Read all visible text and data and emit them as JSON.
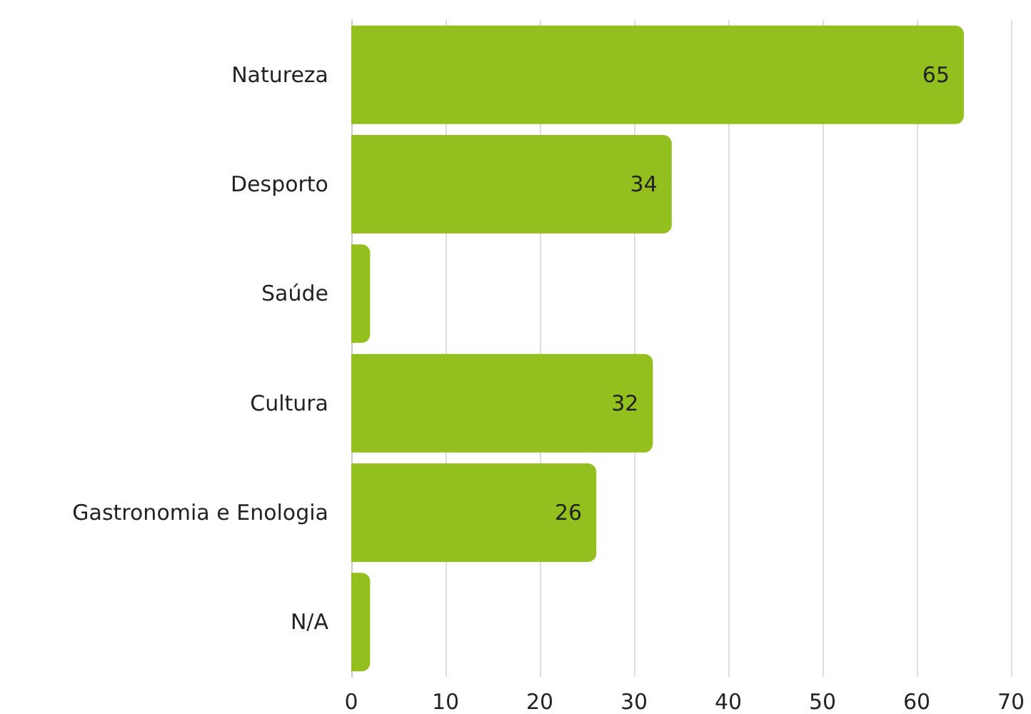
{
  "chart_data": {
    "type": "bar",
    "orientation": "horizontal",
    "categories": [
      "Natureza",
      "Desporto",
      "Saúde",
      "Cultura",
      "Gastronomia e Enologia",
      "N/A"
    ],
    "values": [
      65,
      34,
      2,
      32,
      26,
      2
    ],
    "value_labels": [
      "65",
      "34",
      null,
      "32",
      "26",
      null
    ],
    "color": "#93c01f",
    "xlim": [
      0,
      70
    ],
    "xticks": [
      0,
      10,
      20,
      30,
      40,
      50,
      60,
      70
    ],
    "grid": "x"
  }
}
